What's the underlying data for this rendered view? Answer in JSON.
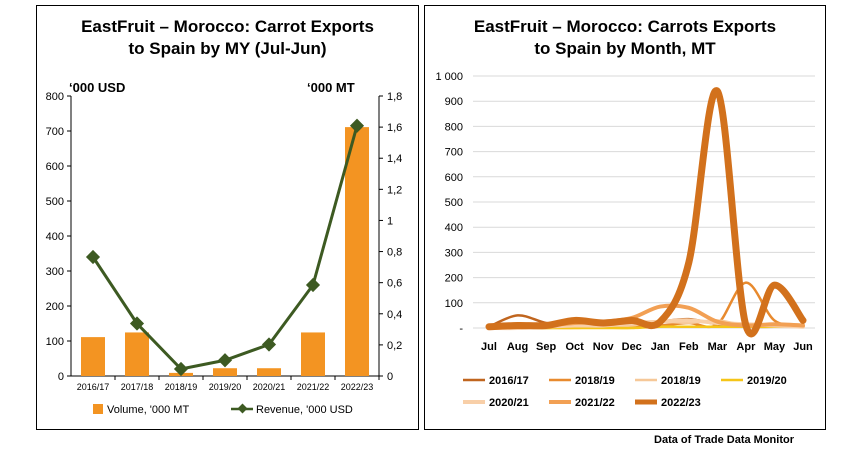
{
  "left_chart": {
    "title_line1": "EastFruit – Morocco: Carrot Exports",
    "title_line2": "to Spain by MY (Jul-Jun)",
    "left_unit": "‘000 USD",
    "right_unit": "‘000 MT"
  },
  "right_chart": {
    "title_line1": "EastFruit – Morocco: Carrots Exports",
    "title_line2": "to Spain by Month, MT"
  },
  "source": "Data of Trade Data Monitor",
  "colors": {
    "bar": "#f39422",
    "revenue_line": "#3d5a22",
    "s2016_17": "#c0651e",
    "s2018_19a": "#e88a2e",
    "s2018_19b": "#f6c898",
    "s2019_20": "#f5c518",
    "s2020_21": "#f8cfa8",
    "s2021_22": "#f2a054",
    "s2022_23": "#d2711c"
  },
  "chart_data": [
    {
      "type": "bar",
      "categories": [
        "2016/17",
        "2017/18",
        "2018/19",
        "2019/20",
        "2020/21",
        "2021/22",
        "2022/23"
      ],
      "series": [
        {
          "name": "Volume, '000 MT",
          "type": "bar",
          "axis": "right",
          "values": [
            0.25,
            0.28,
            0.02,
            0.05,
            0.05,
            0.28,
            1.6
          ]
        },
        {
          "name": "Revenue, '000 USD",
          "type": "line",
          "axis": "left",
          "values": [
            340,
            150,
            20,
            45,
            90,
            260,
            715
          ]
        }
      ],
      "y_left_ticks": [
        "0",
        "100",
        "200",
        "300",
        "400",
        "500",
        "600",
        "700",
        "800"
      ],
      "y_right_ticks": [
        "0",
        "0,2",
        "0,4",
        "0,6",
        "0,8",
        "1",
        "1,2",
        "1,4",
        "1,6",
        "1,8"
      ],
      "ylim_left": [
        0,
        800
      ],
      "ylim_right": [
        0,
        1.8
      ],
      "legend": "bottom",
      "grid": false
    },
    {
      "type": "line",
      "categories": [
        "Jul",
        "Aug",
        "Sep",
        "Oct",
        "Nov",
        "Dec",
        "Jan",
        "Feb",
        "Mar",
        "Apr",
        "May",
        "Jun"
      ],
      "y_ticks": [
        "-",
        "100",
        "200",
        "300",
        "400",
        "500",
        "600",
        "700",
        "800",
        "900",
        "1 000"
      ],
      "ylim": [
        0,
        1000
      ],
      "grid": true,
      "legend": "bottom",
      "series": [
        {
          "name": "2016/17",
          "color_key": "s2016_17",
          "width": 2.5,
          "values": [
            5,
            50,
            20,
            10,
            20,
            10,
            25,
            35,
            15,
            5,
            5,
            5
          ]
        },
        {
          "name": "2018/19",
          "color_key": "s2018_19a",
          "width": 2.5,
          "values": [
            0,
            0,
            0,
            5,
            5,
            5,
            10,
            20,
            15,
            180,
            30,
            10
          ]
        },
        {
          "name": "2018/19",
          "color_key": "s2018_19b",
          "width": 2.5,
          "values": [
            0,
            0,
            0,
            0,
            5,
            10,
            25,
            20,
            30,
            10,
            5,
            5
          ]
        },
        {
          "name": "2019/20",
          "color_key": "s2019_20",
          "width": 2.5,
          "values": [
            0,
            0,
            0,
            0,
            0,
            0,
            5,
            5,
            5,
            5,
            5,
            5
          ]
        },
        {
          "name": "2020/21",
          "color_key": "s2020_21",
          "width": 4,
          "values": [
            0,
            0,
            5,
            10,
            10,
            20,
            25,
            30,
            20,
            15,
            10,
            5
          ]
        },
        {
          "name": "2021/22",
          "color_key": "s2021_22",
          "width": 4,
          "values": [
            5,
            5,
            10,
            20,
            25,
            40,
            85,
            80,
            25,
            10,
            15,
            10
          ]
        },
        {
          "name": "2022/23",
          "color_key": "s2022_23",
          "width": 7,
          "values": [
            5,
            10,
            10,
            30,
            20,
            30,
            25,
            260,
            940,
            10,
            170,
            30
          ]
        }
      ]
    }
  ]
}
